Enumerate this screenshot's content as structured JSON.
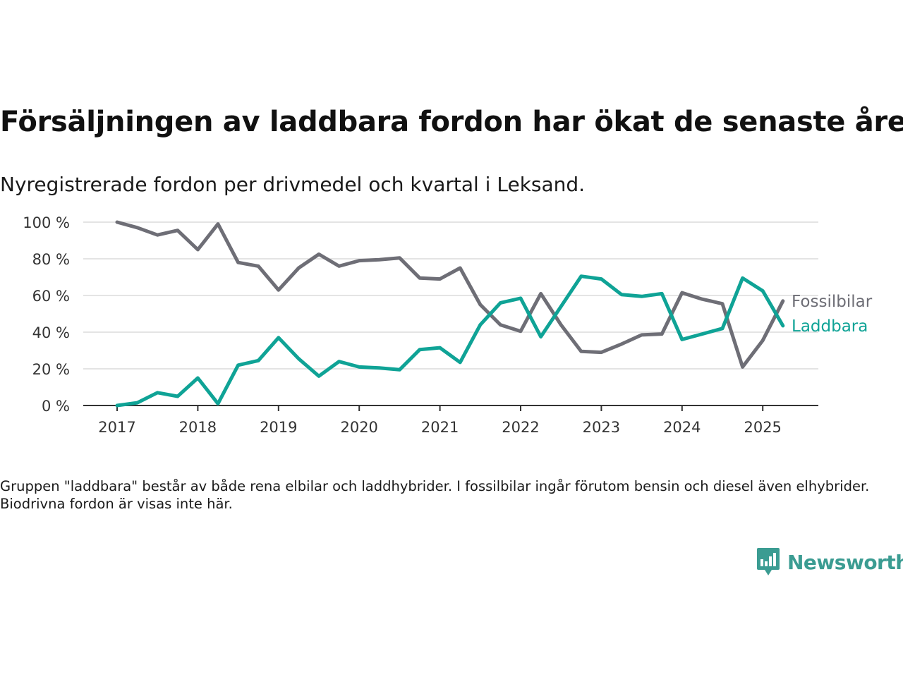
{
  "title": "Försäljningen av laddbara fordon har ökat de senaste åren",
  "subtitle": "Nyregistrerade fordon per drivmedel och kvartal i Leksand.",
  "note": "Gruppen \"laddbara\" består av både rena elbilar och laddhybrider. I fossilbilar ingår förutom bensin och diesel även elhybrider. Biodrivna fordon är visas inte här.",
  "brand": {
    "name": "Newsworthy",
    "icon": "newsworthy-logo-icon",
    "color": "#3b9c92"
  },
  "chart_data": {
    "type": "line",
    "x": [
      "2017-Q1",
      "2017-Q2",
      "2017-Q3",
      "2017-Q4",
      "2018-Q1",
      "2018-Q2",
      "2018-Q3",
      "2018-Q4",
      "2019-Q1",
      "2019-Q2",
      "2019-Q3",
      "2019-Q4",
      "2020-Q1",
      "2020-Q2",
      "2020-Q3",
      "2020-Q4",
      "2021-Q1",
      "2021-Q2",
      "2021-Q3",
      "2021-Q4",
      "2022-Q1",
      "2022-Q2",
      "2022-Q3",
      "2022-Q4",
      "2023-Q1",
      "2023-Q2",
      "2023-Q3",
      "2023-Q4",
      "2024-Q1",
      "2024-Q2",
      "2024-Q3",
      "2024-Q4",
      "2025-Q1",
      "2025-Q2"
    ],
    "x_ticks": [
      "2017",
      "2018",
      "2019",
      "2020",
      "2021",
      "2022",
      "2023",
      "2024",
      "2025"
    ],
    "y_ticks": [
      "0 %",
      "20 %",
      "40 %",
      "60 %",
      "80 %",
      "100 %"
    ],
    "ylim": [
      0,
      100
    ],
    "grid": true,
    "series": [
      {
        "name": "Fossilbilar",
        "color": "#6e6e76",
        "values": [
          100,
          97,
          93,
          95.5,
          85,
          99,
          78,
          76,
          63,
          75,
          82.5,
          76,
          79,
          79.5,
          80.5,
          69.5,
          69,
          75,
          55,
          44,
          40.5,
          61,
          44,
          29.5,
          29,
          33.5,
          38.5,
          39,
          61.5,
          58,
          55.5,
          21,
          35.5,
          57
        ]
      },
      {
        "name": "Laddbara",
        "color": "#0fa396",
        "values": [
          0,
          1.5,
          7,
          5,
          15,
          1,
          22,
          24.5,
          37,
          25.5,
          16,
          24,
          21,
          20.5,
          19.5,
          30.5,
          31.5,
          23.5,
          44,
          56,
          58.5,
          37.5,
          54,
          70.5,
          69,
          60.5,
          59.5,
          61,
          36,
          39,
          42,
          69.5,
          62.5,
          43.5
        ]
      }
    ]
  }
}
